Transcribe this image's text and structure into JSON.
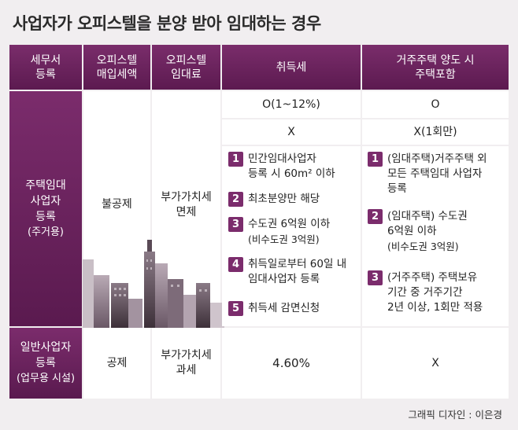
{
  "title": "사업자가 오피스텔을 분양 받아 임대하는 경우",
  "headers": {
    "tax_office": [
      "세무서",
      "등록"
    ],
    "purchase_vat": [
      "오피스텔",
      "매입세액"
    ],
    "rent": [
      "오피스텔",
      "임대료"
    ],
    "acquisition": "취득세",
    "transfer": [
      "거주주택 양도 시",
      "주택포함"
    ]
  },
  "housing_row": {
    "label": [
      "주택임대",
      "사업자",
      "등록"
    ],
    "label_sub": "(주거용)",
    "purchase_vat": "불공제",
    "rent": [
      "부가가치세",
      "면제"
    ],
    "acq_rate": "O(1~12%)",
    "transfer_o": "O",
    "acq_x": "X",
    "transfer_x": "X(1회만)",
    "acq_items": [
      {
        "num": "1",
        "lines": [
          "민간임대사업자",
          "등록 시 60m² 이하"
        ]
      },
      {
        "num": "2",
        "lines": [
          "최초분양만 해당"
        ]
      },
      {
        "num": "3",
        "lines": [
          "수도권 6억원 이하"
        ],
        "small": "(비수도권 3억원)"
      },
      {
        "num": "4",
        "lines": [
          "취득일로부터 60일 내",
          "임대사업자 등록"
        ]
      },
      {
        "num": "5",
        "lines": [
          "취득세 감면신청"
        ]
      }
    ],
    "transfer_items": [
      {
        "num": "1",
        "lines": [
          "(임대주택)거주주택 외",
          "모든 주택임대 사업자",
          "등록"
        ]
      },
      {
        "num": "2",
        "lines": [
          "(임대주택) 수도권",
          "6억원 이하"
        ],
        "small": "(비수도권 3억원)"
      },
      {
        "num": "3",
        "lines": [
          "(거주주택) 주택보유",
          "기간 중 거주기간",
          "2년 이상, 1회만 적용"
        ]
      }
    ]
  },
  "business_row": {
    "label": [
      "일반사업자",
      "등록"
    ],
    "label_sub": "(업무용 시설)",
    "purchase_vat": "공제",
    "rent": [
      "부가가치세",
      "과세"
    ],
    "acquisition": "4.60%",
    "transfer": "X"
  },
  "credit": "그래픽 디자인 : 이은경",
  "colors": {
    "header": "#6b2460",
    "background": "#f1eef0",
    "number_box": "#7b2c6c"
  }
}
